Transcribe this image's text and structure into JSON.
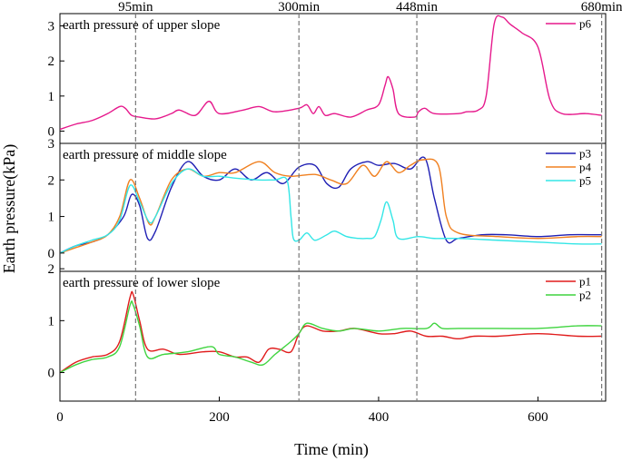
{
  "chart_data": {
    "type": "line",
    "xlabel": "Time (min)",
    "ylabel": "Earth pressure(kPa)",
    "xlim": [
      0,
      685
    ],
    "x_ticks": [
      0,
      200,
      400,
      600
    ],
    "event_lines": [
      {
        "x": 95,
        "label": "95min"
      },
      {
        "x": 300,
        "label": "300min"
      },
      {
        "x": 448,
        "label": "448min"
      },
      {
        "x": 680,
        "label": "680min"
      }
    ],
    "panels": [
      {
        "title": "earth pressure of upper slope",
        "ylim": [
          -0.35,
          3.35
        ],
        "y_ticks": [
          0,
          1,
          2,
          3
        ],
        "legend_position": "top-right",
        "series": [
          {
            "name": "p6",
            "color": "#e6198c",
            "x": [
              0,
              20,
              40,
              60,
              75,
              82,
              90,
              100,
              120,
              140,
              150,
              170,
              187,
              200,
              230,
              250,
              270,
              300,
              310,
              318,
              325,
              333,
              345,
              365,
              385,
              400,
              408,
              412,
              418,
              425,
              445,
              450,
              458,
              470,
              500,
              510,
              525,
              535,
              545,
              555,
              565,
              580,
              600,
              615,
              630,
              660,
              680
            ],
            "y": [
              0.05,
              0.2,
              0.3,
              0.5,
              0.7,
              0.65,
              0.45,
              0.4,
              0.35,
              0.5,
              0.6,
              0.45,
              0.85,
              0.5,
              0.6,
              0.7,
              0.55,
              0.65,
              0.75,
              0.5,
              0.7,
              0.45,
              0.5,
              0.4,
              0.6,
              0.75,
              1.3,
              1.55,
              1.2,
              0.5,
              0.4,
              0.55,
              0.65,
              0.5,
              0.5,
              0.55,
              0.6,
              1.0,
              3.05,
              3.25,
              3.05,
              2.8,
              2.4,
              0.9,
              0.5,
              0.5,
              0.45
            ]
          }
        ]
      },
      {
        "title": "earth pressure of middle slope",
        "ylim": [
          -0.5,
          3.0
        ],
        "y_ticks": [
          0,
          1,
          2,
          3
        ],
        "legend_position": "top-right",
        "series": [
          {
            "name": "p3",
            "color": "#1f1fb4",
            "x": [
              0,
              20,
              40,
              60,
              80,
              90,
              100,
              110,
              120,
              140,
              160,
              180,
              200,
              220,
              240,
              260,
              280,
              300,
              320,
              335,
              350,
              365,
              385,
              400,
              420,
              440,
              458,
              470,
              485,
              500,
              530,
              560,
              600,
              640,
              680
            ],
            "y": [
              0,
              0.2,
              0.3,
              0.5,
              1.0,
              1.6,
              1.3,
              0.4,
              0.6,
              1.8,
              2.5,
              2.1,
              2.0,
              2.3,
              2.0,
              2.2,
              1.9,
              2.35,
              2.4,
              1.9,
              1.8,
              2.3,
              2.5,
              2.4,
              2.45,
              2.3,
              2.6,
              1.5,
              0.35,
              0.4,
              0.5,
              0.5,
              0.45,
              0.5,
              0.5
            ]
          },
          {
            "name": "p4",
            "color": "#f08020",
            "x": [
              0,
              20,
              40,
              60,
              75,
              88,
              100,
              112,
              120,
              140,
              160,
              180,
              200,
              220,
              250,
              270,
              290,
              320,
              340,
              360,
              380,
              395,
              410,
              425,
              440,
              455,
              475,
              485,
              500,
              550,
              600,
              650,
              680
            ],
            "y": [
              0,
              0.15,
              0.3,
              0.5,
              1.0,
              2.0,
              1.5,
              0.8,
              1.0,
              2.0,
              2.3,
              2.1,
              2.2,
              2.2,
              2.5,
              2.2,
              2.1,
              2.15,
              2.0,
              1.9,
              2.4,
              2.1,
              2.5,
              2.2,
              2.4,
              2.55,
              2.4,
              1.0,
              0.55,
              0.45,
              0.4,
              0.45,
              0.45
            ]
          },
          {
            "name": "p5",
            "color": "#33e6e6",
            "x": [
              0,
              20,
              40,
              60,
              75,
              88,
              100,
              112,
              120,
              140,
              160,
              180,
              200,
              220,
              250,
              270,
              285,
              290,
              293,
              300,
              310,
              320,
              335,
              345,
              360,
              375,
              385,
              395,
              403,
              410,
              418,
              425,
              450,
              470,
              500,
              550,
              600,
              650,
              680
            ],
            "y": [
              0,
              0.2,
              0.35,
              0.5,
              0.9,
              1.85,
              1.4,
              0.85,
              1.0,
              1.9,
              2.3,
              2.1,
              2.1,
              2.05,
              2.0,
              2.0,
              2.0,
              1.0,
              0.4,
              0.35,
              0.55,
              0.35,
              0.5,
              0.6,
              0.45,
              0.4,
              0.4,
              0.45,
              0.9,
              1.4,
              0.9,
              0.4,
              0.45,
              0.4,
              0.4,
              0.35,
              0.3,
              0.25,
              0.25
            ]
          }
        ]
      },
      {
        "title": "earth pressure of lower slope",
        "ylim": [
          -0.55,
          1.95
        ],
        "y_ticks": [
          0,
          1,
          2
        ],
        "legend_position": "top-right",
        "series": [
          {
            "name": "p1",
            "color": "#e01b1b",
            "x": [
              0,
              20,
              40,
              60,
              75,
              88,
              92,
              100,
              110,
              130,
              150,
              180,
              200,
              220,
              235,
              250,
              262,
              275,
              290,
              300,
              310,
              330,
              350,
              370,
              400,
              420,
              440,
              460,
              480,
              500,
              520,
              550,
              600,
              650,
              680
            ],
            "y": [
              0,
              0.2,
              0.3,
              0.35,
              0.6,
              1.45,
              1.5,
              1.0,
              0.45,
              0.45,
              0.35,
              0.4,
              0.4,
              0.3,
              0.3,
              0.2,
              0.45,
              0.45,
              0.4,
              0.75,
              0.9,
              0.8,
              0.8,
              0.85,
              0.75,
              0.75,
              0.8,
              0.7,
              0.7,
              0.65,
              0.7,
              0.7,
              0.75,
              0.7,
              0.7
            ]
          },
          {
            "name": "p2",
            "color": "#3fd43f",
            "x": [
              0,
              20,
              40,
              60,
              75,
              88,
              92,
              100,
              110,
              130,
              160,
              190,
              200,
              220,
              240,
              255,
              270,
              290,
              300,
              310,
              330,
              350,
              370,
              400,
              430,
              460,
              470,
              480,
              500,
              550,
              600,
              650,
              680
            ],
            "y": [
              0,
              0.15,
              0.25,
              0.3,
              0.5,
              1.3,
              1.3,
              0.9,
              0.3,
              0.35,
              0.4,
              0.5,
              0.35,
              0.3,
              0.2,
              0.15,
              0.35,
              0.6,
              0.75,
              0.95,
              0.85,
              0.8,
              0.85,
              0.8,
              0.85,
              0.85,
              0.95,
              0.85,
              0.85,
              0.85,
              0.85,
              0.9,
              0.9
            ]
          }
        ]
      }
    ]
  }
}
